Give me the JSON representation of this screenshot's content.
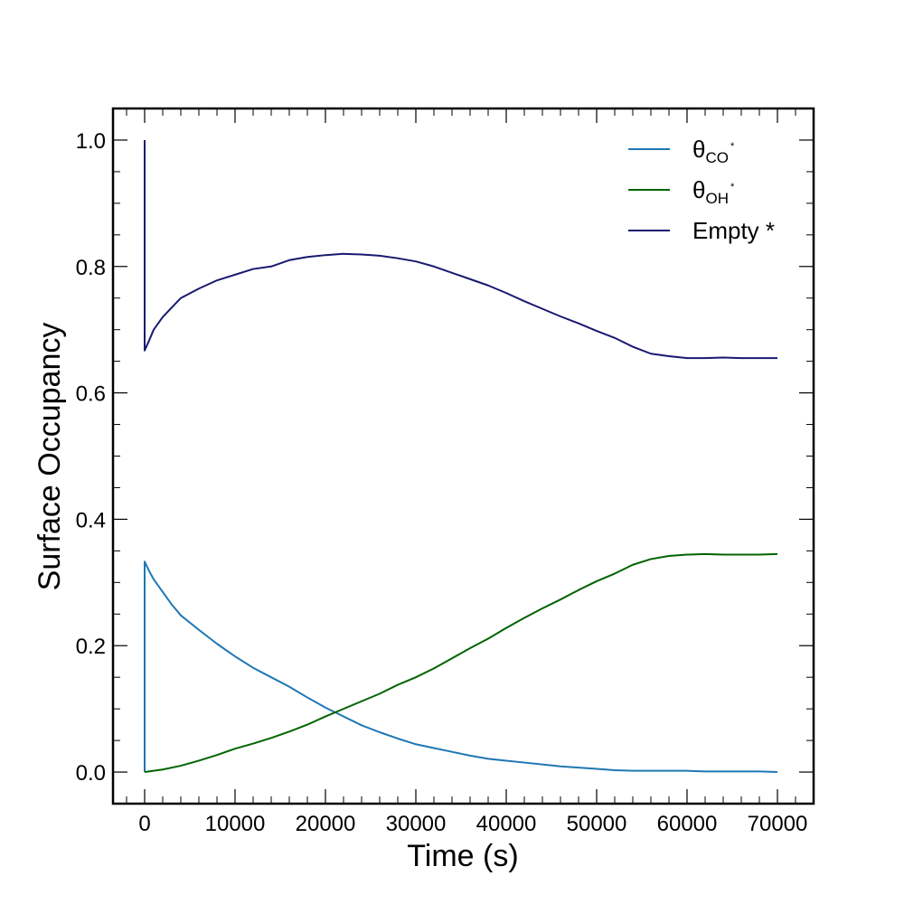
{
  "chart_data": {
    "type": "line",
    "title": "",
    "xlabel": "Time (s)",
    "ylabel": "Surface Occupancy",
    "xlim": [
      -3500,
      74000
    ],
    "ylim": [
      -0.05,
      1.05
    ],
    "xticks": [
      0,
      10000,
      20000,
      30000,
      40000,
      50000,
      60000,
      70000
    ],
    "xtick_labels": [
      "0",
      "10000",
      "20000",
      "30000",
      "40000",
      "50000",
      "60000",
      "70000"
    ],
    "yticks": [
      0.0,
      0.2,
      0.4,
      0.6,
      0.8,
      1.0
    ],
    "ytick_labels": [
      "0.0",
      "0.2",
      "0.4",
      "0.6",
      "0.8",
      "1.0"
    ],
    "grid": false,
    "legend_position": "top-right",
    "series": [
      {
        "name": "θCO*",
        "label_main": "θ",
        "label_sub": "CO",
        "label_sup": "*",
        "color": "#1f77b4",
        "x": [
          0,
          0,
          500,
          1000,
          2000,
          3000,
          4000,
          6000,
          8000,
          10000,
          12000,
          14000,
          16000,
          18000,
          20000,
          22000,
          24000,
          26000,
          28000,
          30000,
          32000,
          34000,
          36000,
          38000,
          40000,
          42000,
          44000,
          46000,
          48000,
          50000,
          52000,
          54000,
          56000,
          58000,
          60000,
          62000,
          64000,
          66000,
          68000,
          70000
        ],
        "y": [
          0.0,
          0.333,
          0.318,
          0.305,
          0.285,
          0.265,
          0.248,
          0.225,
          0.203,
          0.183,
          0.165,
          0.15,
          0.135,
          0.118,
          0.102,
          0.088,
          0.074,
          0.063,
          0.053,
          0.044,
          0.038,
          0.032,
          0.026,
          0.021,
          0.018,
          0.015,
          0.012,
          0.009,
          0.007,
          0.005,
          0.003,
          0.002,
          0.002,
          0.002,
          0.002,
          0.001,
          0.001,
          0.001,
          0.001,
          0.0
        ]
      },
      {
        "name": "θOH*",
        "label_main": "θ",
        "label_sub": "OH",
        "label_sup": "*",
        "color": "#006400",
        "x": [
          0,
          2000,
          4000,
          6000,
          8000,
          10000,
          12000,
          14000,
          16000,
          18000,
          20000,
          22000,
          24000,
          26000,
          28000,
          30000,
          32000,
          34000,
          36000,
          38000,
          40000,
          42000,
          44000,
          46000,
          48000,
          50000,
          52000,
          54000,
          56000,
          58000,
          60000,
          62000,
          64000,
          66000,
          68000,
          70000
        ],
        "y": [
          0.0,
          0.004,
          0.01,
          0.018,
          0.027,
          0.037,
          0.045,
          0.054,
          0.064,
          0.075,
          0.088,
          0.1,
          0.112,
          0.124,
          0.138,
          0.15,
          0.164,
          0.18,
          0.196,
          0.211,
          0.228,
          0.244,
          0.259,
          0.273,
          0.288,
          0.302,
          0.314,
          0.328,
          0.337,
          0.342,
          0.344,
          0.345,
          0.344,
          0.344,
          0.344,
          0.345
        ]
      },
      {
        "name": "Empty *",
        "label_main": "Empty *",
        "label_sub": "",
        "label_sup": "",
        "color": "#191970",
        "x": [
          0,
          0,
          500,
          1000,
          2000,
          3000,
          4000,
          6000,
          8000,
          10000,
          12000,
          14000,
          16000,
          18000,
          20000,
          22000,
          24000,
          26000,
          28000,
          30000,
          32000,
          34000,
          36000,
          38000,
          40000,
          42000,
          44000,
          46000,
          48000,
          50000,
          52000,
          54000,
          56000,
          58000,
          60000,
          62000,
          64000,
          66000,
          68000,
          70000
        ],
        "y": [
          1.0,
          0.667,
          0.683,
          0.7,
          0.72,
          0.735,
          0.75,
          0.765,
          0.778,
          0.787,
          0.796,
          0.8,
          0.81,
          0.815,
          0.818,
          0.82,
          0.819,
          0.817,
          0.813,
          0.808,
          0.8,
          0.79,
          0.78,
          0.77,
          0.758,
          0.745,
          0.733,
          0.721,
          0.71,
          0.698,
          0.687,
          0.673,
          0.662,
          0.658,
          0.655,
          0.655,
          0.656,
          0.655,
          0.655,
          0.655
        ]
      }
    ]
  }
}
